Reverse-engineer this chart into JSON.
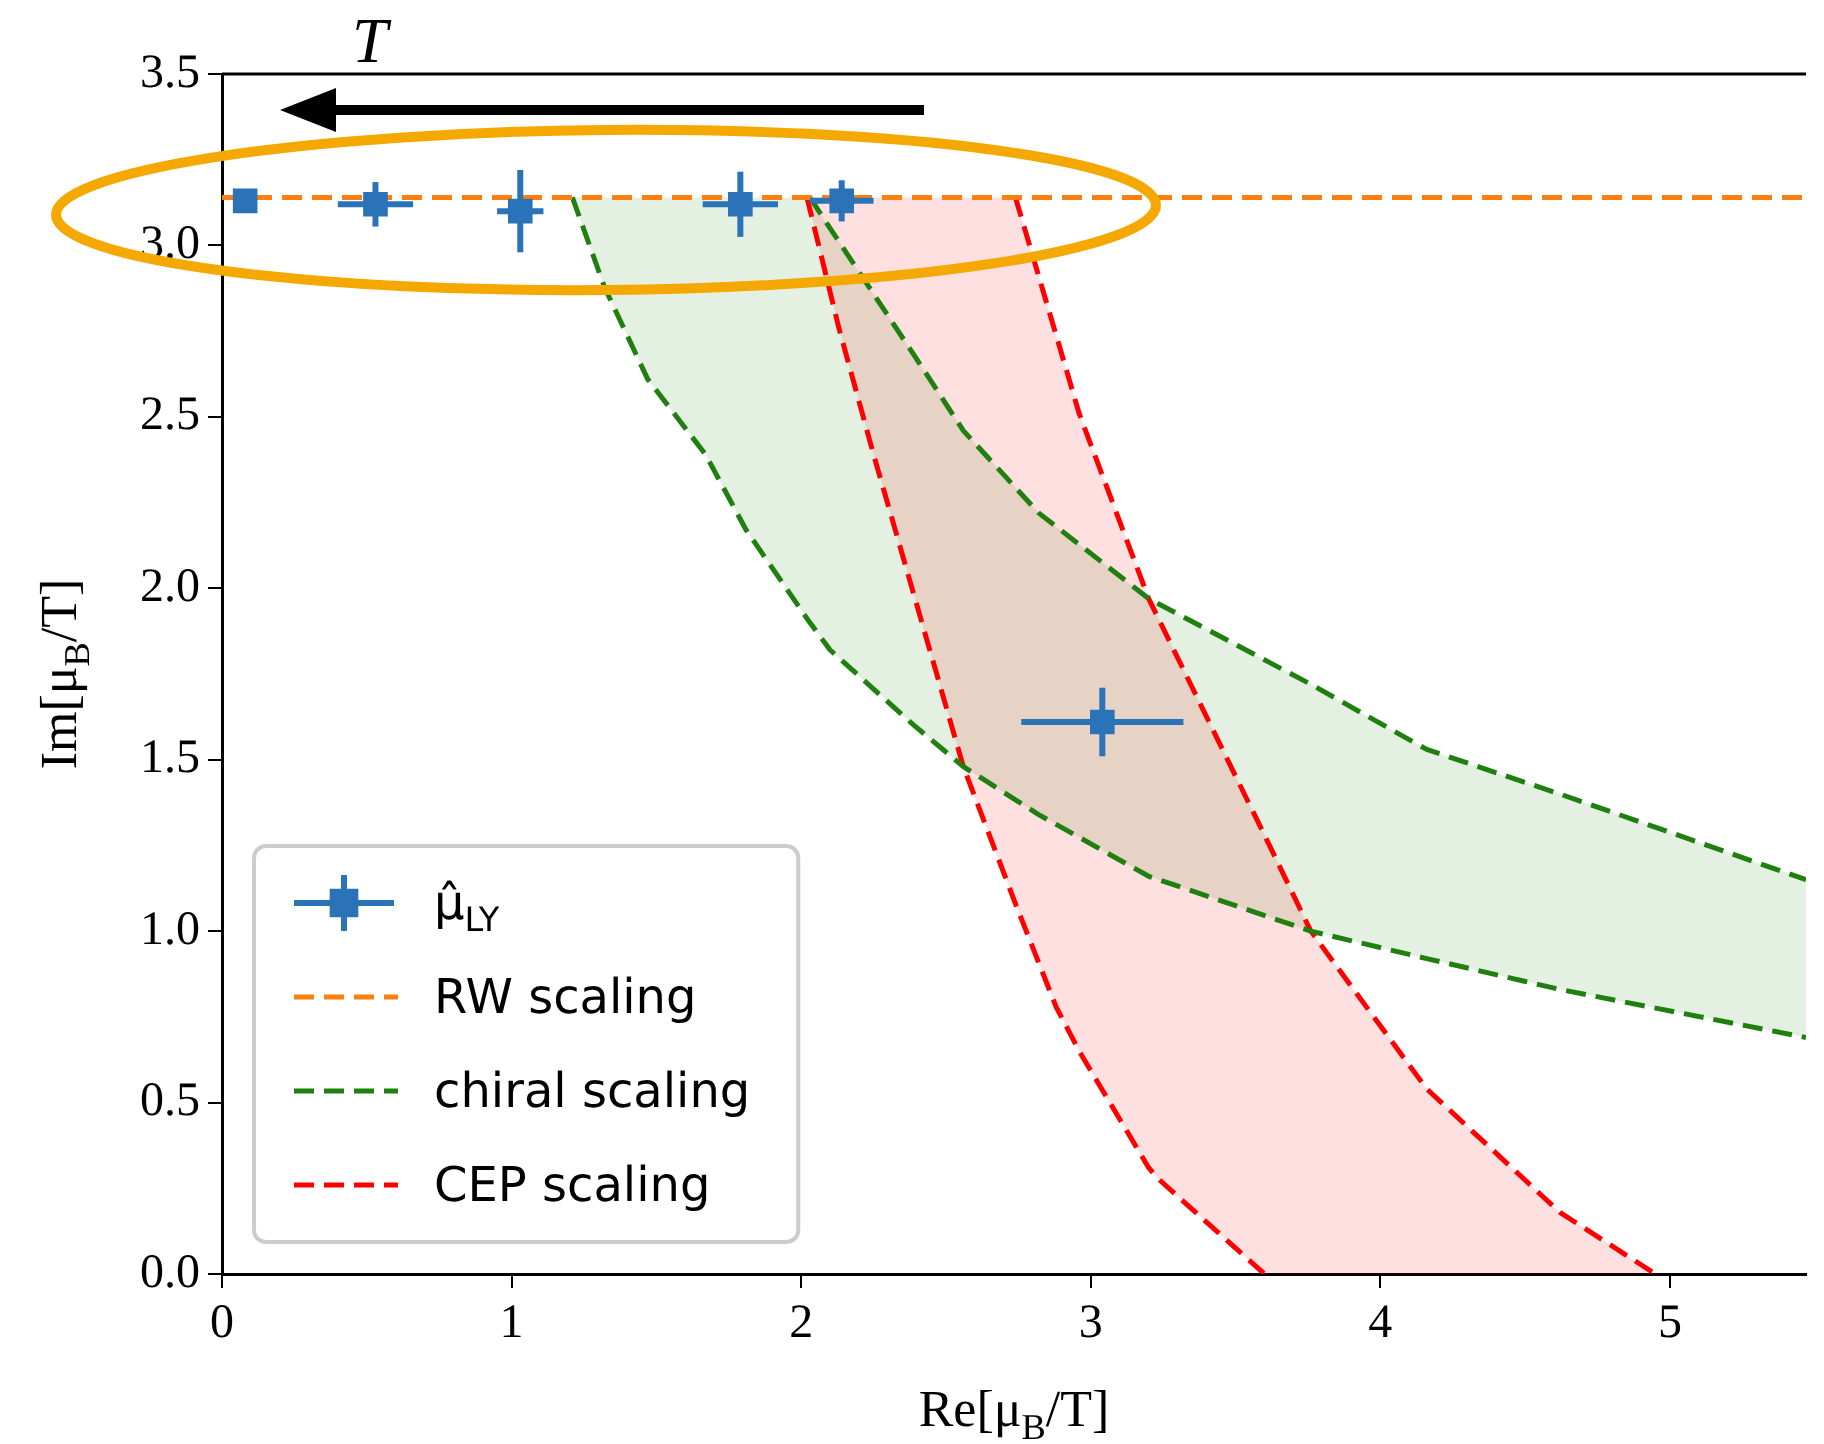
{
  "chart_data": {
    "type": "scatter",
    "xlabel": "Re[μ$_{B}$/T]",
    "ylabel": "Im[μ$_{B}$/T]",
    "annotations": [
      "T"
    ],
    "xlim": [
      0,
      5.47
    ],
    "xticks": [
      0,
      1,
      2,
      3,
      4,
      5
    ],
    "ylim": [
      0,
      3.5
    ],
    "yticks": [
      {
        "value": 0,
        "label": "0.0"
      },
      {
        "value": 0.5,
        "label": "0.5"
      },
      {
        "value": 1,
        "label": "1.0"
      },
      {
        "value": 1.5,
        "label": "1.5"
      },
      {
        "value": 2,
        "label": "2.0"
      },
      {
        "value": 2.5,
        "label": "2.5"
      },
      {
        "value": 3,
        "label": "3.0"
      },
      {
        "value": 3.5,
        "label": "3.5"
      }
    ],
    "legend": "bottom left",
    "line_style": "dashed",
    "series": [
      {
        "name": "μ̂$_{LY}$",
        "marker": "square",
        "color": "#2a73b8",
        "x": [
          0.08,
          0.53,
          1.03,
          1.79,
          2.14,
          3.04
        ],
        "values": [
          3.13,
          3.12,
          3.1,
          3.12,
          3.13,
          1.61
        ],
        "errors": [
          null,
          0.065,
          0.12,
          0.095,
          0.06,
          0.1
        ],
        "xerrors": [
          null,
          0.13,
          0.08,
          0.13,
          0.11,
          0.28
        ]
      },
      {
        "name": "RW scaling",
        "type": "line",
        "color": "#ff7f0e",
        "x": [
          0,
          5.47
        ],
        "values": [
          3.14,
          3.14
        ]
      },
      {
        "name": "chiral scaling",
        "type": "line",
        "color": "#1f8010",
        "x": [
          1.21,
          1.32,
          1.47,
          1.67,
          1.81,
          2.03,
          2.1,
          2.39,
          2.56,
          2.82,
          3.2,
          3.76,
          4.16,
          4.62,
          5.47
        ],
        "values": [
          3.14,
          2.88,
          2.61,
          2.39,
          2.17,
          1.9,
          1.82,
          1.6,
          1.48,
          1.34,
          1.16,
          1.0,
          0.92,
          0.83,
          0.69
        ],
        "lower": [
          3.14,
          2.88,
          2.61,
          2.39,
          2.17,
          1.9,
          1.82,
          1.6,
          1.48,
          1.34,
          1.16,
          1.0,
          0.92,
          0.83,
          0.69
        ],
        "upper": [
          3.14,
          3.14,
          3.14,
          3.14,
          3.14,
          3.14,
          3.05,
          2.68,
          2.46,
          2.22,
          1.97,
          1.72,
          1.53,
          1.4,
          1.15
        ]
      },
      {
        "type": "line",
        "color": "#1f8010",
        "x": [
          2.03,
          2.1,
          2.39,
          2.56,
          2.82,
          3.2,
          3.76,
          4.16,
          4.62,
          5.47
        ],
        "values": [
          3.14,
          3.05,
          2.68,
          2.46,
          2.22,
          1.97,
          1.72,
          1.53,
          1.4,
          1.15
        ]
      },
      {
        "name": "CEP scaling",
        "type": "line",
        "color": "#ff0000",
        "x": [
          2.02,
          2.13,
          2.25,
          2.56,
          2.74,
          2.88,
          2.96,
          3.2,
          3.23,
          3.6,
          3.76,
          4.16,
          4.62,
          4.95
        ],
        "values": [
          3.14,
          2.76,
          2.39,
          1.48,
          1.08,
          0.78,
          0.65,
          0.31,
          0.28,
          0,
          null,
          null,
          null,
          null
        ],
        "lower": [
          3.14,
          2.76,
          2.39,
          1.48,
          1.08,
          0.78,
          0.65,
          0.31,
          0.28,
          0,
          0,
          0,
          0,
          0
        ],
        "upper": [
          3.14,
          3.14,
          3.14,
          3.14,
          3.14,
          2.74,
          2.51,
          1.97,
          1.92,
          1.28,
          1.0,
          0.54,
          0.18,
          0
        ]
      },
      {
        "type": "line",
        "color": "#ff0000",
        "x": [
          2.74,
          2.88,
          2.96,
          3.2,
          3.6,
          3.76,
          4.16,
          4.62,
          4.95
        ],
        "values": [
          3.14,
          2.74,
          2.51,
          1.97,
          1.28,
          1.0,
          0.54,
          0.18,
          0
        ]
      }
    ]
  }
}
